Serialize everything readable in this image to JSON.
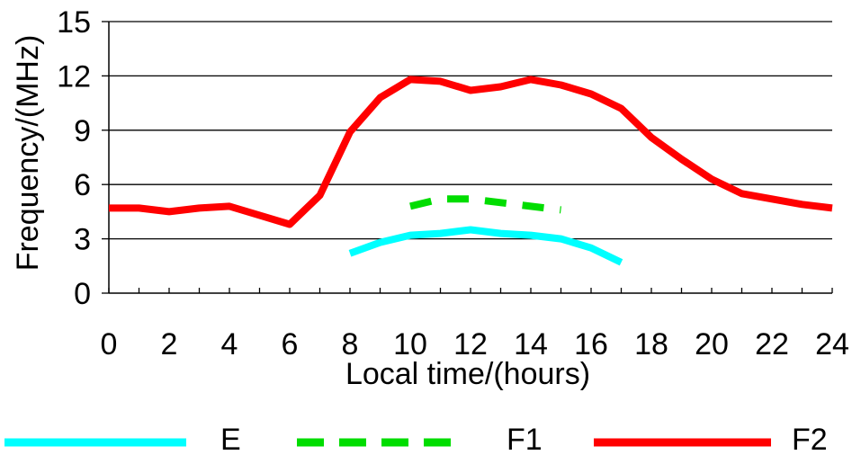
{
  "chart_data": {
    "type": "line",
    "title": "",
    "xlabel": "Local time/(hours)",
    "ylabel": "Frequency/(MHz)",
    "xlim": [
      0,
      24
    ],
    "ylim": [
      0,
      15
    ],
    "x_ticks": [
      "0",
      "2",
      "4",
      "6",
      "8",
      "10",
      "12",
      "14",
      "16",
      "18",
      "20",
      "22",
      "24"
    ],
    "y_ticks": [
      "0",
      "3",
      "6",
      "9",
      "12",
      "15"
    ],
    "grid": "horizontal",
    "legend_position": "bottom",
    "series": [
      {
        "name": "E",
        "color": "#00FFFF",
        "style": "solid",
        "x": [
          8,
          9,
          10,
          11,
          12,
          13,
          14,
          15,
          16,
          17
        ],
        "y": [
          2.2,
          2.8,
          3.2,
          3.3,
          3.5,
          3.3,
          3.2,
          3.0,
          2.5,
          1.7
        ]
      },
      {
        "name": "F1",
        "color": "#00DD00",
        "style": "dashed",
        "x": [
          10,
          11,
          12,
          13,
          14,
          15
        ],
        "y": [
          4.8,
          5.2,
          5.2,
          5.0,
          4.8,
          4.6
        ]
      },
      {
        "name": "F2",
        "color": "#FF0000",
        "style": "solid",
        "x": [
          0,
          1,
          2,
          3,
          4,
          5,
          6,
          7,
          8,
          9,
          10,
          11,
          12,
          13,
          14,
          15,
          16,
          17,
          18,
          19,
          20,
          21,
          22,
          23,
          24
        ],
        "y": [
          4.7,
          4.7,
          4.5,
          4.7,
          4.8,
          4.3,
          3.8,
          5.4,
          8.9,
          10.8,
          11.8,
          11.7,
          11.2,
          11.4,
          11.8,
          11.5,
          11.0,
          10.2,
          8.6,
          7.4,
          6.3,
          5.5,
          5.2,
          4.9,
          4.7
        ]
      }
    ]
  }
}
